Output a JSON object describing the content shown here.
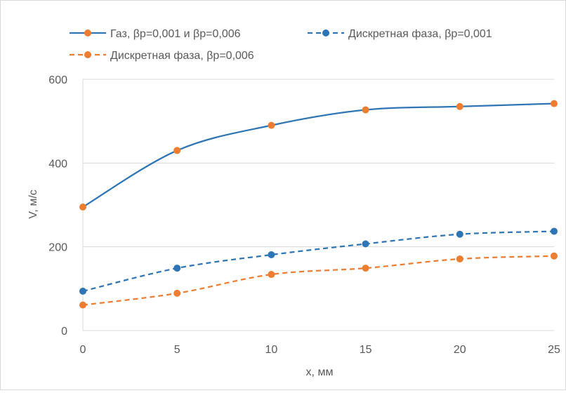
{
  "chart_data": {
    "type": "line",
    "xlabel": "x, мм",
    "ylabel": "V, м/с",
    "x": [
      0,
      5,
      10,
      15,
      20,
      25
    ],
    "xlim": [
      0,
      25
    ],
    "ylim": [
      0,
      600
    ],
    "xticks": [
      "0",
      "5",
      "10",
      "15",
      "20",
      "25"
    ],
    "yticks": [
      "0",
      "200",
      "400",
      "600"
    ],
    "grid": "horizontal",
    "legend_position": "top",
    "series": [
      {
        "name": "Газ, βр=0,001 и βр=0,006",
        "values": [
          295,
          430,
          490,
          527,
          535,
          542
        ],
        "line_color": "#2e75b6",
        "marker_color": "#ed7d31",
        "dash": "solid"
      },
      {
        "name": "Дискретная фаза, βр=0,001",
        "values": [
          94,
          149,
          181,
          207,
          230,
          237
        ],
        "line_color": "#2e75b6",
        "marker_color": "#2e75b6",
        "dash": "dashed"
      },
      {
        "name": "Дискретная фаза, βр=0,006",
        "values": [
          61,
          89,
          134,
          149,
          171,
          178
        ],
        "line_color": "#ed7d31",
        "marker_color": "#ed7d31",
        "dash": "dashed"
      }
    ]
  }
}
